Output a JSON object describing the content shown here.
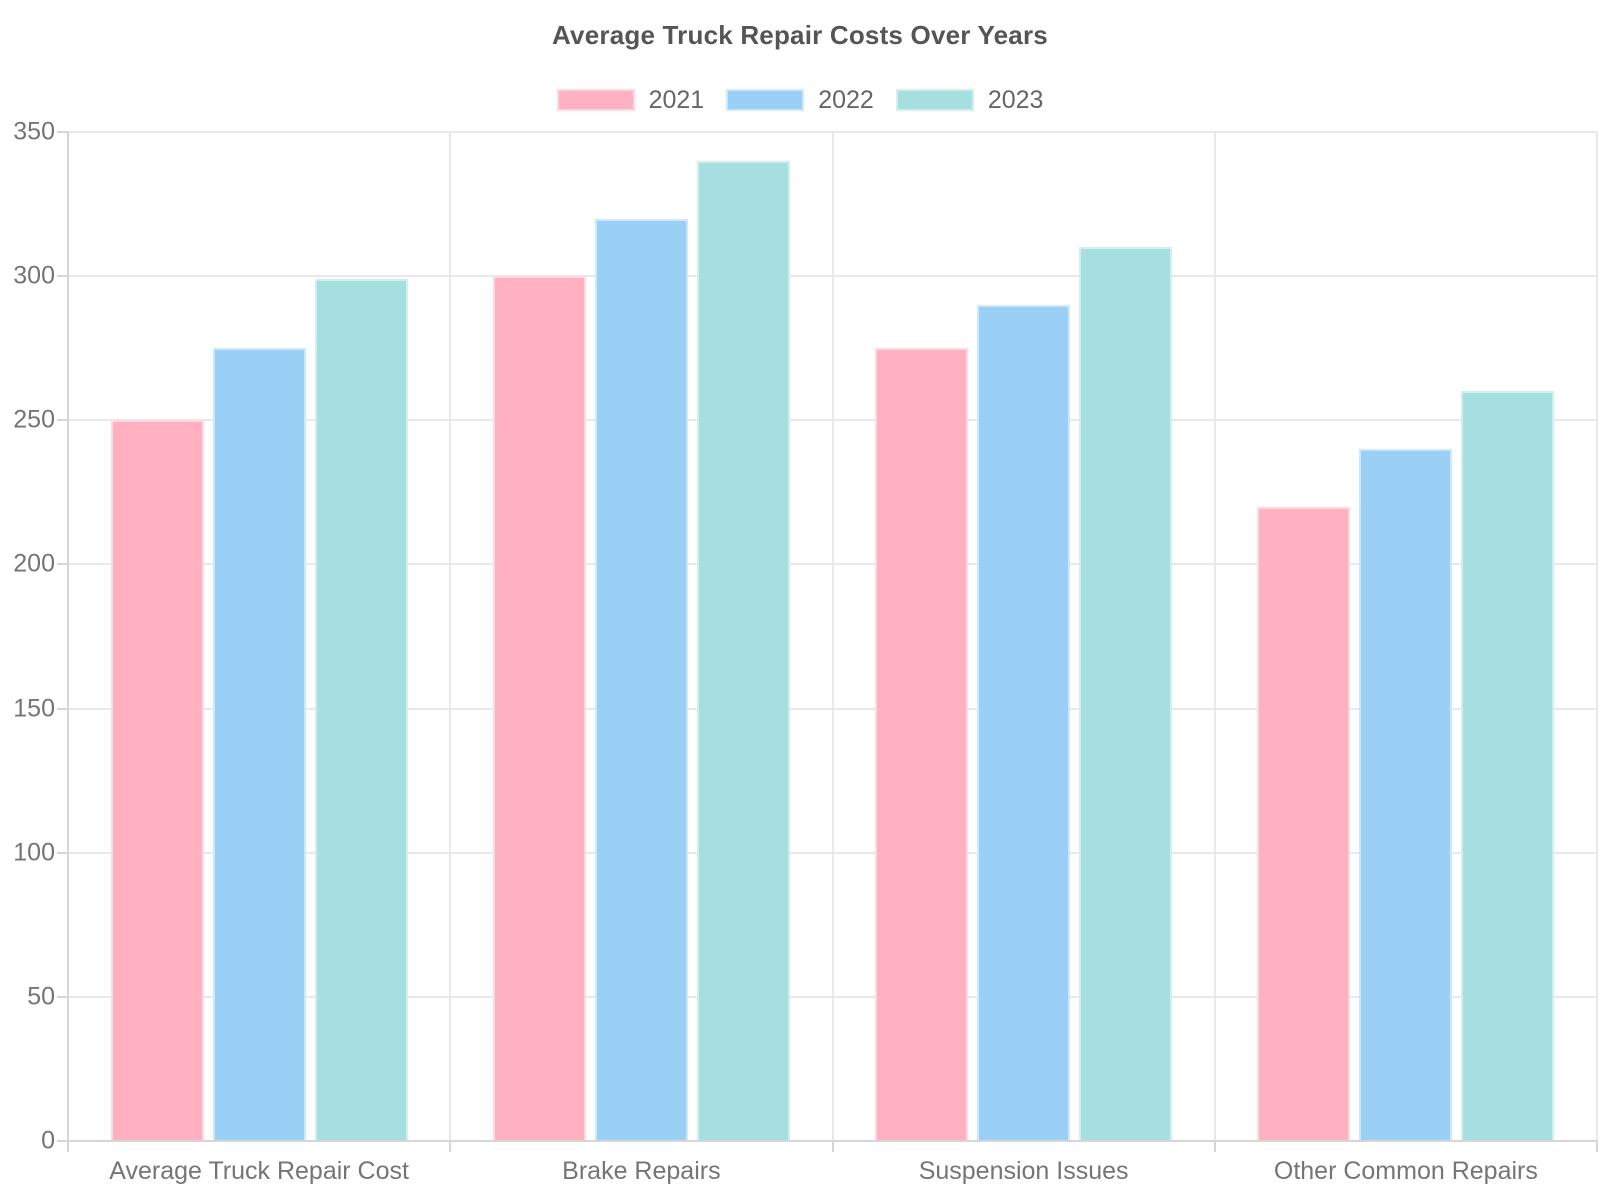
{
  "chart_data": {
    "type": "bar",
    "title": "Average Truck Repair Costs Over Years",
    "xlabel": "",
    "ylabel": "",
    "categories": [
      "Average Truck Repair Cost",
      "Brake Repairs",
      "Suspension Issues",
      "Other Common Repairs"
    ],
    "series": [
      {
        "name": "2021",
        "color": "#FFB1C1",
        "border_color": "#FFD8E0",
        "values": [
          250,
          300,
          275,
          220
        ]
      },
      {
        "name": "2022",
        "color": "#9AD0F5",
        "border_color": "#CDE8FA",
        "values": [
          275,
          320,
          290,
          240
        ]
      },
      {
        "name": "2023",
        "color": "#A5DFDF",
        "border_color": "#D2EFEF",
        "values": [
          299,
          340,
          310,
          260
        ]
      }
    ],
    "ylim": [
      0,
      350
    ],
    "ytick_step": 50,
    "yticks": [
      0,
      50,
      100,
      150,
      200,
      250,
      300,
      350
    ],
    "legend_position": "top",
    "grid": true,
    "colors": {
      "grid": "#e9e9e9",
      "axis_border": "#d6d6d6",
      "tick_text": "#757575",
      "legend_text": "#666666",
      "title_text": "#555555",
      "background": "#ffffff"
    }
  }
}
